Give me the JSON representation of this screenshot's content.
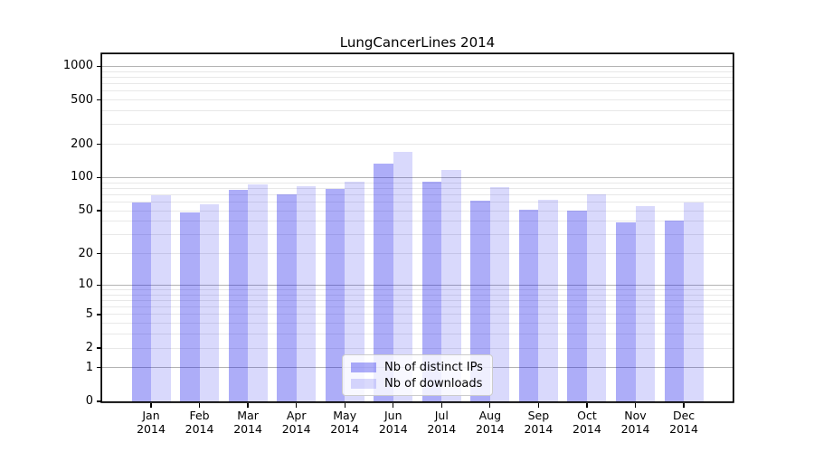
{
  "title": "LungCancerLines 2014",
  "colors": {
    "ips_bar": "rgba(20,20,235,0.35)",
    "downloads_bar": "rgba(20,20,235,0.16)",
    "ips_bar_hex": "#a8a8f5",
    "downloads_bar_hex": "#d9d9fb",
    "major_grid": "#b3b3b3",
    "minor_grid": "#e8e8e8",
    "axis": "#000000"
  },
  "legend": {
    "items": [
      {
        "label": "Nb of distinct IPs",
        "series": "ips"
      },
      {
        "label": "Nb of downloads",
        "series": "downloads"
      }
    ]
  },
  "y_axis": {
    "scale": "log10(1+value)",
    "tick_values": [
      0,
      1,
      2,
      5,
      10,
      20,
      50,
      100,
      200,
      500,
      1000
    ],
    "tick_labels": [
      "0",
      "1",
      "2",
      "5",
      "10",
      "20",
      "50",
      "100",
      "200",
      "500",
      "1000"
    ],
    "major_grid_values": [
      1,
      10,
      100,
      1000
    ]
  },
  "x_axis": {
    "categories": [
      {
        "month": "Jan",
        "year": "2014"
      },
      {
        "month": "Feb",
        "year": "2014"
      },
      {
        "month": "Mar",
        "year": "2014"
      },
      {
        "month": "Apr",
        "year": "2014"
      },
      {
        "month": "May",
        "year": "2014"
      },
      {
        "month": "Jun",
        "year": "2014"
      },
      {
        "month": "Jul",
        "year": "2014"
      },
      {
        "month": "Aug",
        "year": "2014"
      },
      {
        "month": "Sep",
        "year": "2014"
      },
      {
        "month": "Oct",
        "year": "2014"
      },
      {
        "month": "Nov",
        "year": "2014"
      },
      {
        "month": "Dec",
        "year": "2014"
      }
    ]
  },
  "chart_data": {
    "type": "bar",
    "title": "LungCancerLines 2014",
    "categories": [
      "Jan 2014",
      "Feb 2014",
      "Mar 2014",
      "Apr 2014",
      "May 2014",
      "Jun 2014",
      "Jul 2014",
      "Aug 2014",
      "Sep 2014",
      "Oct 2014",
      "Nov 2014",
      "Dec 2014"
    ],
    "series": [
      {
        "name": "Nb of distinct IPs",
        "values": [
          60,
          48,
          77,
          70,
          79,
          135,
          92,
          62,
          51,
          50,
          39,
          41
        ]
      },
      {
        "name": "Nb of downloads",
        "values": [
          69,
          57,
          87,
          84,
          91,
          172,
          117,
          82,
          63,
          71,
          55,
          60
        ]
      }
    ],
    "xlabel": "",
    "ylabel": "",
    "yscale": "pseudo-log (log10 of 1+v); labeled ticks at 0,1,2,5,10,20,50,100,200,500,1000",
    "ylim": [
      0,
      1286
    ],
    "grid": true,
    "legend_position": "inside plot, lower center"
  }
}
